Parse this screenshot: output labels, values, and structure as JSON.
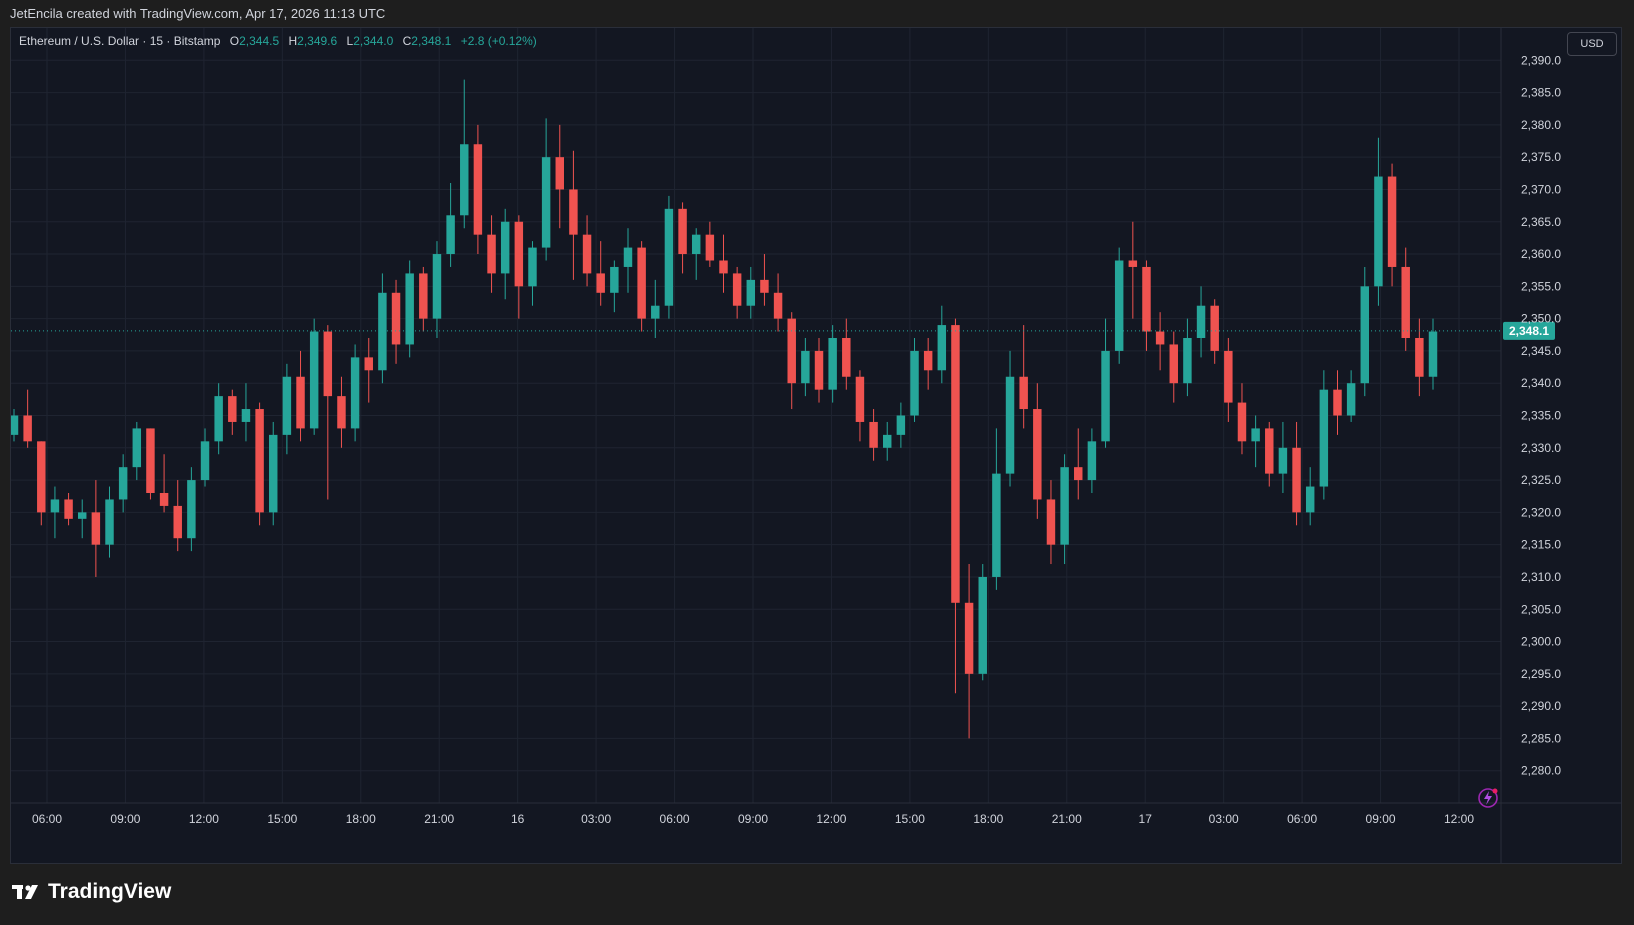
{
  "header": {
    "attribution": "JetEncila created with TradingView.com, Apr 17, 2026 11:13 UTC"
  },
  "legend": {
    "symbol": "Ethereum / U.S. Dollar · 15 · Bitstamp",
    "o_label": "O",
    "o_value": "2,344.5",
    "h_label": "H",
    "h_value": "2,349.6",
    "l_label": "L",
    "l_value": "2,344.0",
    "c_label": "C",
    "c_value": "2,348.1",
    "change": "+2.8 (+0.12%)"
  },
  "currency_button": "USD",
  "brand": {
    "name": "TradingView"
  },
  "colors": {
    "up": "#26a69a",
    "down": "#ef5350",
    "background": "#131722",
    "grid": "#1f2431",
    "text": "#d1d4dc"
  },
  "icons": {
    "brand_logo": "tradingview-logo-icon",
    "bolt": "lightning-bolt-icon"
  },
  "chart_data": {
    "type": "candlestick",
    "title": "Ethereum / U.S. Dollar · 15 · Bitstamp",
    "ylim": [
      2275,
      2395
    ],
    "y_ticks": [
      "2,280.0",
      "2,285.0",
      "2,290.0",
      "2,295.0",
      "2,300.0",
      "2,305.0",
      "2,310.0",
      "2,315.0",
      "2,320.0",
      "2,325.0",
      "2,330.0",
      "2,335.0",
      "2,340.0",
      "2,345.0",
      "2,350.0",
      "2,355.0",
      "2,360.0",
      "2,365.0",
      "2,370.0",
      "2,375.0",
      "2,380.0",
      "2,385.0",
      "2,390.0"
    ],
    "x_ticks": [
      "06:00",
      "09:00",
      "12:00",
      "15:00",
      "18:00",
      "21:00",
      "16",
      "03:00",
      "06:00",
      "09:00",
      "12:00",
      "15:00",
      "18:00",
      "21:00",
      "17",
      "03:00",
      "06:00",
      "09:00",
      "12:00"
    ],
    "last_price": "2,348.1",
    "last_value": 2348.1,
    "grid": true,
    "candles": [
      [
        2332,
        2336,
        2331,
        2335
      ],
      [
        2335,
        2339,
        2330,
        2331
      ],
      [
        2331,
        2331,
        2318,
        2320
      ],
      [
        2320,
        2324,
        2316,
        2322
      ],
      [
        2322,
        2323,
        2318,
        2319
      ],
      [
        2319,
        2322,
        2316,
        2320
      ],
      [
        2320,
        2325,
        2310,
        2315
      ],
      [
        2315,
        2324,
        2313,
        2322
      ],
      [
        2322,
        2329,
        2320,
        2327
      ],
      [
        2327,
        2334,
        2325,
        2333
      ],
      [
        2333,
        2333,
        2322,
        2323
      ],
      [
        2323,
        2329,
        2320,
        2321
      ],
      [
        2321,
        2325,
        2314,
        2316
      ],
      [
        2316,
        2327,
        2314,
        2325
      ],
      [
        2325,
        2333,
        2324,
        2331
      ],
      [
        2331,
        2340,
        2329,
        2338
      ],
      [
        2338,
        2339,
        2332,
        2334
      ],
      [
        2334,
        2340,
        2331,
        2336
      ],
      [
        2336,
        2337,
        2318,
        2320
      ],
      [
        2320,
        2334,
        2318,
        2332
      ],
      [
        2332,
        2343,
        2329,
        2341
      ],
      [
        2341,
        2345,
        2331,
        2333
      ],
      [
        2333,
        2350,
        2332,
        2348
      ],
      [
        2348,
        2349,
        2322,
        2338
      ],
      [
        2338,
        2341,
        2330,
        2333
      ],
      [
        2333,
        2346,
        2331,
        2344
      ],
      [
        2344,
        2347,
        2337,
        2342
      ],
      [
        2342,
        2357,
        2340,
        2354
      ],
      [
        2354,
        2356,
        2343,
        2346
      ],
      [
        2346,
        2359,
        2344,
        2357
      ],
      [
        2357,
        2358,
        2348,
        2350
      ],
      [
        2350,
        2362,
        2347,
        2360
      ],
      [
        2360,
        2371,
        2358,
        2366
      ],
      [
        2366,
        2387,
        2364,
        2377
      ],
      [
        2377,
        2380,
        2360,
        2363
      ],
      [
        2363,
        2366,
        2354,
        2357
      ],
      [
        2357,
        2367,
        2353,
        2365
      ],
      [
        2365,
        2366,
        2350,
        2355
      ],
      [
        2355,
        2362,
        2352,
        2361
      ],
      [
        2361,
        2381,
        2359,
        2375
      ],
      [
        2375,
        2380,
        2364,
        2370
      ],
      [
        2370,
        2376,
        2356,
        2363
      ],
      [
        2363,
        2366,
        2355,
        2357
      ],
      [
        2357,
        2362,
        2352,
        2354
      ],
      [
        2354,
        2359,
        2351,
        2358
      ],
      [
        2358,
        2364,
        2354,
        2361
      ],
      [
        2361,
        2362,
        2348,
        2350
      ],
      [
        2350,
        2356,
        2347,
        2352
      ],
      [
        2352,
        2369,
        2350,
        2367
      ],
      [
        2367,
        2368,
        2357,
        2360
      ],
      [
        2360,
        2364,
        2356,
        2363
      ],
      [
        2363,
        2365,
        2358,
        2359
      ],
      [
        2359,
        2363,
        2354,
        2357
      ],
      [
        2357,
        2358,
        2350,
        2352
      ],
      [
        2352,
        2358,
        2350,
        2356
      ],
      [
        2356,
        2360,
        2352,
        2354
      ],
      [
        2354,
        2357,
        2348,
        2350
      ],
      [
        2350,
        2351,
        2336,
        2340
      ],
      [
        2340,
        2347,
        2338,
        2345
      ],
      [
        2345,
        2347,
        2337,
        2339
      ],
      [
        2339,
        2349,
        2337,
        2347
      ],
      [
        2347,
        2350,
        2339,
        2341
      ],
      [
        2341,
        2342,
        2331,
        2334
      ],
      [
        2334,
        2336,
        2328,
        2330
      ],
      [
        2330,
        2334,
        2328,
        2332
      ],
      [
        2332,
        2337,
        2330,
        2335
      ],
      [
        2335,
        2347,
        2334,
        2345
      ],
      [
        2345,
        2347,
        2339,
        2342
      ],
      [
        2342,
        2352,
        2340,
        2349
      ],
      [
        2349,
        2350,
        2292,
        2306
      ],
      [
        2306,
        2312,
        2285,
        2295
      ],
      [
        2295,
        2312,
        2294,
        2310
      ],
      [
        2310,
        2333,
        2308,
        2326
      ],
      [
        2326,
        2345,
        2324,
        2341
      ],
      [
        2341,
        2349,
        2333,
        2336
      ],
      [
        2336,
        2340,
        2319,
        2322
      ],
      [
        2322,
        2325,
        2312,
        2315
      ],
      [
        2315,
        2329,
        2312,
        2327
      ],
      [
        2327,
        2333,
        2322,
        2325
      ],
      [
        2325,
        2333,
        2323,
        2331
      ],
      [
        2331,
        2350,
        2330,
        2345
      ],
      [
        2345,
        2361,
        2343,
        2359
      ],
      [
        2359,
        2365,
        2350,
        2358
      ],
      [
        2358,
        2359,
        2345,
        2348
      ],
      [
        2348,
        2351,
        2342,
        2346
      ],
      [
        2346,
        2348,
        2337,
        2340
      ],
      [
        2340,
        2350,
        2338,
        2347
      ],
      [
        2347,
        2355,
        2344,
        2352
      ],
      [
        2352,
        2353,
        2343,
        2345
      ],
      [
        2345,
        2347,
        2334,
        2337
      ],
      [
        2337,
        2340,
        2329,
        2331
      ],
      [
        2331,
        2335,
        2327,
        2333
      ],
      [
        2333,
        2334,
        2324,
        2326
      ],
      [
        2326,
        2334,
        2323,
        2330
      ],
      [
        2330,
        2334,
        2318,
        2320
      ],
      [
        2320,
        2327,
        2318,
        2324
      ],
      [
        2324,
        2342,
        2322,
        2339
      ],
      [
        2339,
        2342,
        2332,
        2335
      ],
      [
        2335,
        2342,
        2334,
        2340
      ],
      [
        2340,
        2358,
        2338,
        2355
      ],
      [
        2355,
        2378,
        2352,
        2372
      ],
      [
        2372,
        2374,
        2355,
        2358
      ],
      [
        2358,
        2361,
        2345,
        2347
      ],
      [
        2347,
        2350,
        2338,
        2341
      ],
      [
        2341,
        2350,
        2339,
        2348
      ]
    ]
  }
}
